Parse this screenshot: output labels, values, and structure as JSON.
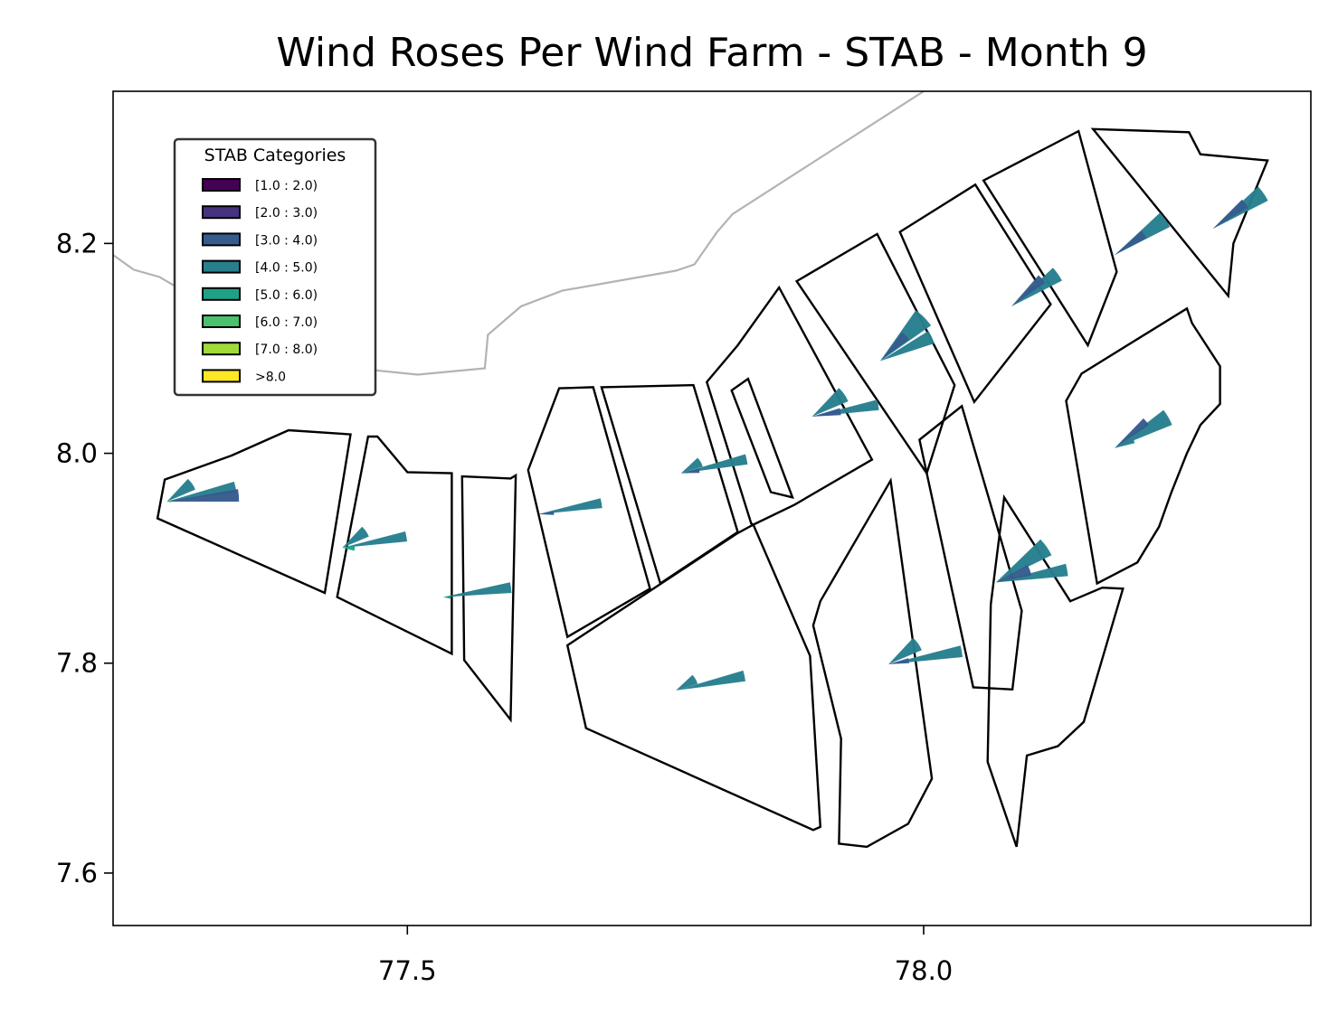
{
  "chart_data": {
    "type": "map-wind-rose",
    "title": "Wind Roses Per Wind Farm - STAB - Month 9",
    "xlabel": "",
    "ylabel": "",
    "xlim": [
      77.215,
      78.375
    ],
    "ylim": [
      7.55,
      8.345
    ],
    "xticks": [
      77.5,
      78.0
    ],
    "xtick_labels": [
      "77.5",
      "78.0"
    ],
    "yticks": [
      7.6,
      7.8,
      8.0,
      8.2
    ],
    "ytick_labels": [
      "7.6",
      "7.8",
      "8.0",
      "8.2"
    ],
    "grid": false,
    "legend": {
      "title": "STAB Categories",
      "placement": "top-left",
      "entries": [
        {
          "label": "[1.0 : 2.0)",
          "color": "#440154"
        },
        {
          "label": "[2.0 : 3.0)",
          "color": "#46327e"
        },
        {
          "label": "[3.0 : 4.0)",
          "color": "#365c8d"
        },
        {
          "label": "[4.0 : 5.0)",
          "color": "#277f8e"
        },
        {
          "label": "[5.0 : 6.0)",
          "color": "#1fa187"
        },
        {
          "label": "[6.0 : 7.0)",
          "color": "#4ac16d"
        },
        {
          "label": "[7.0 : 8.0)",
          "color": "#a0da39"
        },
        {
          "label": ">8.0",
          "color": "#fde725"
        }
      ]
    },
    "coastline": [
      [
        77.215,
        8.189
      ],
      [
        77.235,
        8.175
      ],
      [
        77.26,
        8.168
      ],
      [
        77.3,
        8.145
      ],
      [
        77.35,
        8.118
      ],
      [
        77.4,
        8.093
      ],
      [
        77.44,
        8.082
      ],
      [
        77.51,
        8.075
      ],
      [
        77.575,
        8.081
      ],
      [
        77.578,
        8.113
      ],
      [
        77.61,
        8.14
      ],
      [
        77.65,
        8.155
      ],
      [
        77.76,
        8.174
      ],
      [
        77.778,
        8.18
      ],
      [
        77.8,
        8.211
      ],
      [
        77.815,
        8.228
      ],
      [
        78.0,
        8.345
      ]
    ],
    "farms": [
      {
        "outline": [
          [
            77.265,
            7.975
          ],
          [
            77.33,
            7.998
          ],
          [
            77.385,
            8.022
          ],
          [
            77.445,
            8.018
          ],
          [
            77.42,
            7.867
          ],
          [
            77.258,
            7.938
          ]
        ]
      },
      {
        "outline": [
          [
            77.462,
            8.016
          ],
          [
            77.471,
            8.016
          ],
          [
            77.5,
            7.982
          ],
          [
            77.543,
            7.981
          ],
          [
            77.543,
            7.809
          ],
          [
            77.432,
            7.863
          ]
        ]
      },
      {
        "outline": [
          [
            77.553,
            7.978
          ],
          [
            77.6,
            7.976
          ],
          [
            77.605,
            7.979
          ],
          [
            77.6,
            7.746
          ],
          [
            77.555,
            7.803
          ]
        ]
      },
      {
        "outline": [
          [
            77.647,
            8.062
          ],
          [
            77.68,
            8.063
          ],
          [
            77.735,
            7.871
          ],
          [
            77.655,
            7.825
          ],
          [
            77.617,
            7.984
          ]
        ]
      },
      {
        "outline": [
          [
            77.688,
            8.063
          ],
          [
            77.777,
            8.065
          ],
          [
            77.82,
            7.925
          ],
          [
            77.745,
            7.876
          ]
        ]
      },
      {
        "outline": [
          [
            77.655,
            7.817
          ],
          [
            77.82,
            7.924
          ],
          [
            77.835,
            7.932
          ],
          [
            77.89,
            7.807
          ],
          [
            77.9,
            7.644
          ],
          [
            77.893,
            7.641
          ],
          [
            77.673,
            7.738
          ]
        ]
      },
      {
        "outline": [
          [
            77.86,
            8.158
          ],
          [
            77.82,
            8.103
          ],
          [
            77.79,
            8.068
          ],
          [
            77.833,
            7.933
          ],
          [
            77.835,
            7.932
          ],
          [
            77.875,
            7.951
          ],
          [
            77.95,
            7.994
          ]
        ]
      },
      {
        "outline": [
          [
            77.873,
            7.958
          ],
          [
            77.852,
            7.963
          ],
          [
            77.814,
            8.06
          ],
          [
            77.83,
            8.071
          ]
        ]
      },
      {
        "outline": [
          [
            77.877,
            8.164
          ],
          [
            77.955,
            8.209
          ],
          [
            78.03,
            8.065
          ],
          [
            78.003,
            7.981
          ]
        ]
      },
      {
        "outline": [
          [
            77.977,
            8.211
          ],
          [
            78.05,
            8.256
          ],
          [
            78.123,
            8.142
          ],
          [
            78.049,
            8.049
          ]
        ]
      },
      {
        "outline": [
          [
            78.058,
            8.26
          ],
          [
            78.15,
            8.307
          ],
          [
            78.187,
            8.173
          ],
          [
            78.159,
            8.103
          ]
        ]
      },
      {
        "outline": [
          [
            78.164,
            8.309
          ],
          [
            78.257,
            8.306
          ],
          [
            78.268,
            8.285
          ],
          [
            78.333,
            8.279
          ],
          [
            78.3,
            8.2
          ],
          [
            78.295,
            8.15
          ]
        ]
      },
      {
        "outline": [
          [
            78.255,
            8.138
          ],
          [
            78.26,
            8.124
          ],
          [
            78.287,
            8.083
          ],
          [
            78.287,
            8.047
          ],
          [
            78.268,
            8.027
          ],
          [
            78.255,
            8.0
          ],
          [
            78.24,
            7.963
          ],
          [
            78.228,
            7.93
          ],
          [
            78.207,
            7.896
          ],
          [
            78.168,
            7.876
          ],
          [
            78.138,
            8.05
          ],
          [
            78.153,
            8.076
          ]
        ]
      },
      {
        "outline": [
          [
            78.142,
            7.859
          ],
          [
            78.173,
            7.872
          ],
          [
            78.193,
            7.871
          ],
          [
            78.155,
            7.744
          ],
          [
            78.13,
            7.721
          ],
          [
            78.1,
            7.712
          ],
          [
            78.09,
            7.625
          ],
          [
            78.062,
            7.706
          ],
          [
            78.065,
            7.856
          ],
          [
            78.078,
            7.958
          ]
        ]
      },
      {
        "outline": [
          [
            77.968,
            7.974
          ],
          [
            77.9,
            7.859
          ],
          [
            77.893,
            7.836
          ],
          [
            77.92,
            7.728
          ],
          [
            77.918,
            7.628
          ],
          [
            77.945,
            7.625
          ],
          [
            77.985,
            7.647
          ],
          [
            78.008,
            7.69
          ]
        ]
      },
      {
        "outline": [
          [
            77.996,
            8.013
          ],
          [
            78.037,
            8.045
          ],
          [
            78.095,
            7.85
          ],
          [
            78.086,
            7.775
          ],
          [
            78.048,
            7.777
          ],
          [
            78.027,
            7.872
          ]
        ]
      }
    ],
    "wind_roses": [
      {
        "center": [
          77.267,
          7.954
        ],
        "petals": [
          {
            "dir": 78,
            "len": 0.068,
            "width": 9,
            "color": "#277f8e"
          },
          {
            "dir": 55,
            "len": 0.03,
            "width": 24,
            "color": "#277f8e"
          },
          {
            "dir": 85,
            "len": 0.07,
            "width": 10,
            "color": "#365c8d"
          },
          {
            "dir": 90,
            "len": 0.004,
            "width": 24,
            "color": "#4ac16d"
          }
        ]
      },
      {
        "center": [
          77.437,
          7.91
        ],
        "petals": [
          {
            "dir": 80,
            "len": 0.063,
            "width": 9,
            "color": "#277f8e"
          },
          {
            "dir": 55,
            "len": 0.028,
            "width": 24,
            "color": "#277f8e"
          },
          {
            "dir": 90,
            "len": 0.012,
            "width": 28,
            "color": "#1fa187"
          }
        ]
      },
      {
        "center": [
          77.535,
          7.863
        ],
        "petals": [
          {
            "dir": 82,
            "len": 0.066,
            "width": 9,
            "color": "#277f8e"
          },
          {
            "dir": 90,
            "len": 0.007,
            "width": 28,
            "color": "#1fa187"
          }
        ]
      },
      {
        "center": [
          77.627,
          7.942
        ],
        "petals": [
          {
            "dir": 80,
            "len": 0.062,
            "width": 9,
            "color": "#277f8e"
          },
          {
            "dir": 86,
            "len": 0.015,
            "width": 14,
            "color": "#365c8d"
          }
        ]
      },
      {
        "center": [
          77.76,
          7.774
        ],
        "petals": [
          {
            "dir": 78,
            "len": 0.068,
            "width": 9,
            "color": "#277f8e"
          },
          {
            "dir": 60,
            "len": 0.022,
            "width": 26,
            "color": "#277f8e"
          }
        ]
      },
      {
        "center": [
          77.765,
          7.981
        ],
        "petals": [
          {
            "dir": 78,
            "len": 0.065,
            "width": 9,
            "color": "#277f8e"
          },
          {
            "dir": 60,
            "len": 0.022,
            "width": 26,
            "color": "#277f8e"
          },
          {
            "dir": 82,
            "len": 0.018,
            "width": 14,
            "color": "#365c8d"
          }
        ]
      },
      {
        "center": [
          77.892,
          8.035
        ],
        "petals": [
          {
            "dir": 80,
            "len": 0.065,
            "width": 9,
            "color": "#277f8e"
          },
          {
            "dir": 55,
            "len": 0.038,
            "width": 24,
            "color": "#277f8e"
          },
          {
            "dir": 80,
            "len": 0.028,
            "width": 14,
            "color": "#365c8d"
          }
        ]
      },
      {
        "center": [
          77.966,
          7.799
        ],
        "petals": [
          {
            "dir": 80,
            "len": 0.072,
            "width": 9,
            "color": "#277f8e"
          },
          {
            "dir": 55,
            "len": 0.035,
            "width": 24,
            "color": "#277f8e"
          },
          {
            "dir": 80,
            "len": 0.02,
            "width": 14,
            "color": "#365c8d"
          }
        ]
      },
      {
        "center": [
          77.958,
          8.088
        ],
        "petals": [
          {
            "dir": 65,
            "len": 0.055,
            "width": 14,
            "color": "#277f8e"
          },
          {
            "dir": 45,
            "len": 0.06,
            "width": 20,
            "color": "#277f8e"
          },
          {
            "dir": 45,
            "len": 0.035,
            "width": 16,
            "color": "#365c8d"
          }
        ]
      },
      {
        "center": [
          78.07,
          7.877
        ],
        "petals": [
          {
            "dir": 80,
            "len": 0.07,
            "width": 10,
            "color": "#277f8e"
          },
          {
            "dir": 55,
            "len": 0.06,
            "width": 18,
            "color": "#277f8e"
          },
          {
            "dir": 70,
            "len": 0.035,
            "width": 18,
            "color": "#365c8d"
          }
        ]
      },
      {
        "center": [
          78.085,
          8.14
        ],
        "petals": [
          {
            "dir": 55,
            "len": 0.055,
            "width": 16,
            "color": "#277f8e"
          },
          {
            "dir": 48,
            "len": 0.04,
            "width": 14,
            "color": "#365c8d"
          }
        ]
      },
      {
        "center": [
          78.185,
          8.005
        ],
        "petals": [
          {
            "dir": 60,
            "len": 0.06,
            "width": 16,
            "color": "#277f8e"
          },
          {
            "dir": 50,
            "len": 0.04,
            "width": 12,
            "color": "#365c8d"
          },
          {
            "dir": 70,
            "len": 0.02,
            "width": 12,
            "color": "#277f8e"
          }
        ]
      },
      {
        "center": [
          78.185,
          8.189
        ],
        "petals": [
          {
            "dir": 55,
            "len": 0.06,
            "width": 16,
            "color": "#277f8e"
          },
          {
            "dir": 55,
            "len": 0.035,
            "width": 14,
            "color": "#365c8d"
          }
        ]
      },
      {
        "center": [
          78.28,
          8.214
        ],
        "petals": [
          {
            "dir": 55,
            "len": 0.06,
            "width": 16,
            "color": "#277f8e"
          },
          {
            "dir": 52,
            "len": 0.04,
            "width": 14,
            "color": "#365c8d"
          }
        ]
      }
    ]
  }
}
